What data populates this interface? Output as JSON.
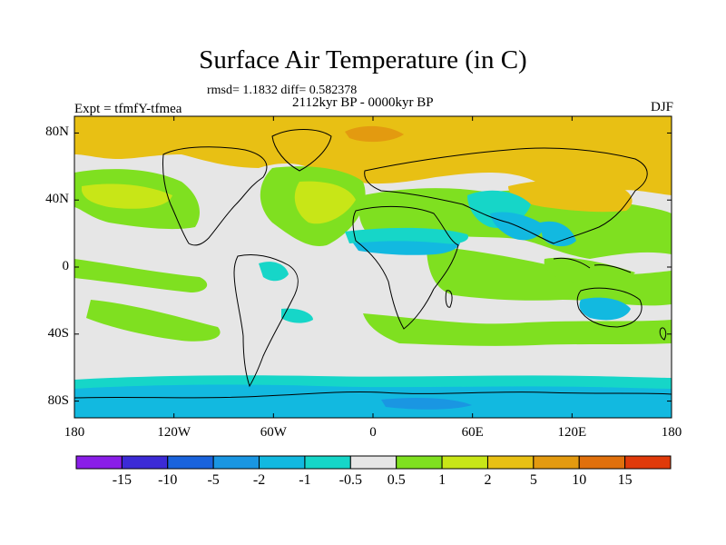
{
  "title": "Surface Air Temperature (in C)",
  "stats": "rmsd= 1.1832 diff= 0.582378",
  "period": "2112kyr BP - 0000kyr BP",
  "experiment": "Expt = tfmfY-tfmea",
  "season": "DJF",
  "map": {
    "lat_labels": [
      "80N",
      "40N",
      "0",
      "40S",
      "80S"
    ],
    "lon_labels": [
      "180",
      "120W",
      "60W",
      "0",
      "60E",
      "120E",
      "180"
    ],
    "lat_values": [
      80,
      40,
      0,
      -40,
      -80
    ],
    "lon_values": [
      -180,
      -120,
      -60,
      0,
      60,
      120,
      180
    ]
  },
  "colorbar": {
    "labels": [
      "-15",
      "-10",
      "-5",
      "-2",
      "-1",
      "-0.5",
      "0.5",
      "1",
      "2",
      "5",
      "10",
      "15"
    ],
    "colors": [
      "#8a1ee8",
      "#3c2bd6",
      "#1a63dc",
      "#1a96e2",
      "#12b9e0",
      "#16d6c8",
      "#e6e6e6",
      "#7fe020",
      "#c8e617",
      "#e8c014",
      "#e39a10",
      "#e0700c",
      "#e03a0a"
    ]
  },
  "colors": {
    "land_outline": "#000000",
    "neutral": "#e6e6e6",
    "warm1": "#7fe020",
    "warm2": "#c8e617",
    "warm3": "#e8c014",
    "warm4": "#e39a10",
    "cool1": "#16d6c8",
    "cool2": "#12b9e0",
    "cool3": "#1a96e2"
  }
}
